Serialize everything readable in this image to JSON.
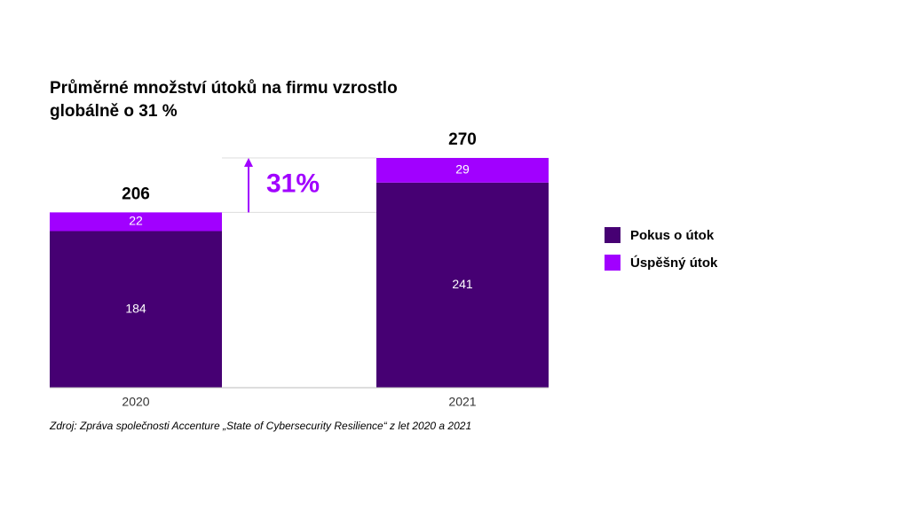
{
  "chart_data": {
    "type": "bar",
    "stacked": true,
    "title": [
      "Průměrné množství útoků na firmu vzrostlo",
      "globálně o 31 %"
    ],
    "categories": [
      "2020",
      "2021"
    ],
    "series": [
      {
        "name": "Pokus o útok",
        "color": "#460073",
        "values": [
          184,
          241
        ]
      },
      {
        "name": "Úspěšný útok",
        "color": "#a100ff",
        "values": [
          22,
          29
        ]
      }
    ],
    "totals": [
      206,
      270
    ],
    "annotation": "31%",
    "ylim": [
      0,
      270
    ],
    "source": "Zdroj: Zpráva společnosti Accenture „State of Cybersecurity Resilience“ z let 2020 a 2021"
  }
}
